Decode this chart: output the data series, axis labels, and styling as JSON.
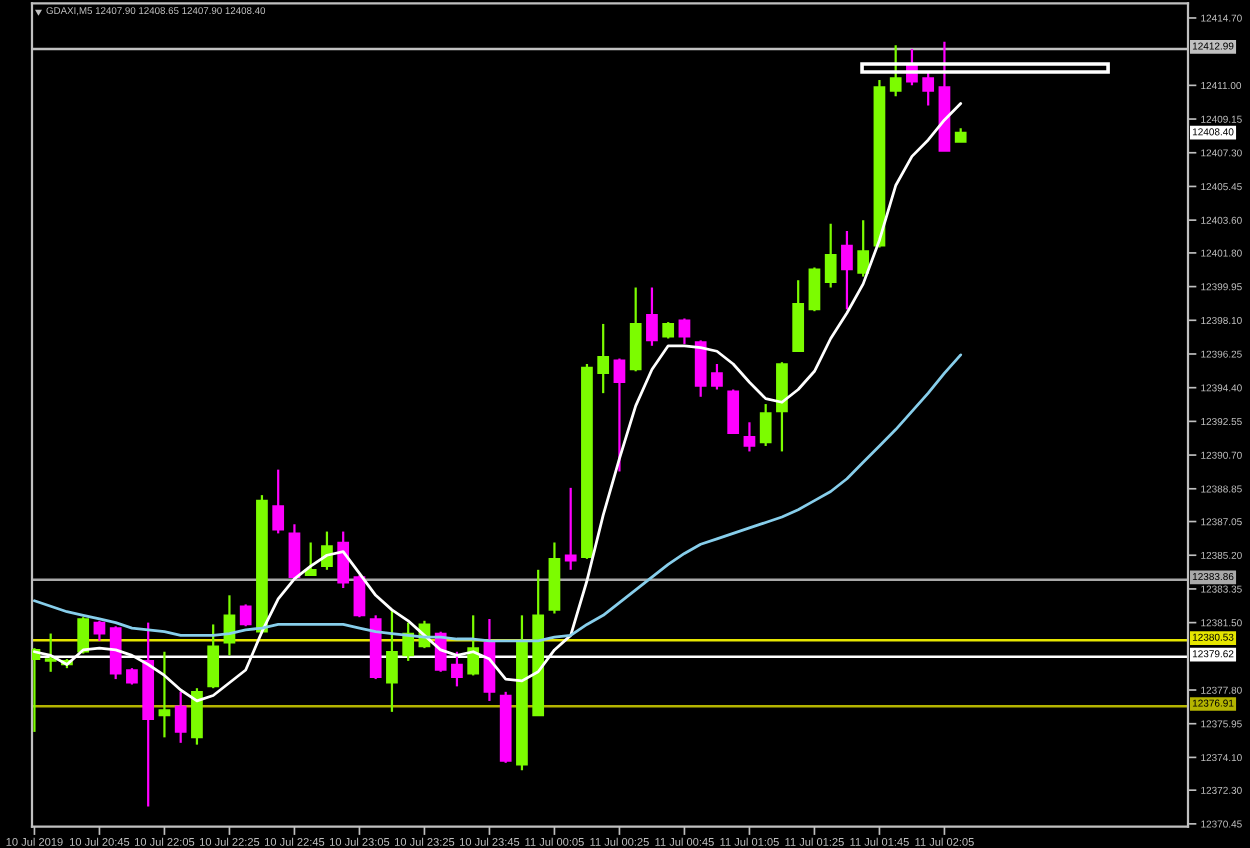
{
  "chart_data": {
    "type": "candlestick",
    "title": "GDAXI,M5 12407.90 12408.65 12407.90 12408.40",
    "categories": [
      "10 Jul 2019",
      null,
      null,
      null,
      "10 Jul 20:45",
      null,
      null,
      null,
      "10 Jul 22:05",
      null,
      null,
      null,
      "10 Jul 22:25",
      null,
      null,
      null,
      "10 Jul 22:45",
      null,
      null,
      null,
      "10 Jul 23:05",
      null,
      null,
      null,
      "10 Jul 23:25",
      null,
      null,
      null,
      "10 Jul 23:45",
      null,
      null,
      null,
      "11 Jul 00:05",
      null,
      null,
      null,
      "11 Jul 00:25",
      null,
      null,
      null,
      "11 Jul 00:45",
      null,
      null,
      null,
      "11 Jul 01:05",
      null,
      null,
      null,
      "11 Jul 01:25",
      null,
      null,
      null,
      "11 Jul 01:45",
      null,
      null,
      null,
      "11 Jul 02:05",
      null
    ],
    "ohlc": [
      [
        12379.5,
        12380.1,
        12375.5,
        12380.0
      ],
      [
        12379.4,
        12380.9,
        12378.8,
        12379.5
      ],
      [
        12379.2,
        12379.5,
        12379.0,
        12379.4
      ],
      [
        12379.9,
        12381.8,
        12379.8,
        12381.7
      ],
      [
        12381.5,
        12381.6,
        12380.5,
        12380.9
      ],
      [
        12381.2,
        12381.3,
        12378.4,
        12378.7
      ],
      [
        12378.9,
        12379.0,
        12378.1,
        12378.2
      ],
      [
        12379.4,
        12381.5,
        12371.4,
        12376.2
      ],
      [
        12376.4,
        12379.9,
        12375.2,
        12376.7
      ],
      [
        12376.9,
        12377.7,
        12374.9,
        12375.5
      ],
      [
        12375.2,
        12377.9,
        12374.8,
        12377.7
      ],
      [
        12378.0,
        12381.4,
        12377.9,
        12380.2
      ],
      [
        12380.4,
        12383.0,
        12379.7,
        12381.9
      ],
      [
        12382.4,
        12382.5,
        12381.3,
        12381.4
      ],
      [
        12381.0,
        12388.5,
        12380.9,
        12388.2
      ],
      [
        12387.9,
        12389.9,
        12386.4,
        12386.6
      ],
      [
        12386.4,
        12386.9,
        12383.9,
        12384.0
      ],
      [
        12384.1,
        12385.9,
        12384.1,
        12384.4
      ],
      [
        12384.6,
        12386.5,
        12384.4,
        12385.7
      ],
      [
        12385.9,
        12386.5,
        12383.4,
        12383.7
      ],
      [
        12384.0,
        12384.1,
        12381.8,
        12381.9
      ],
      [
        12381.7,
        12381.9,
        12378.4,
        12378.5
      ],
      [
        12378.2,
        12382.2,
        12376.6,
        12379.9
      ],
      [
        12379.7,
        12381.5,
        12379.4,
        12380.9
      ],
      [
        12380.2,
        12381.6,
        12380.1,
        12381.4
      ],
      [
        12380.9,
        12381.0,
        12378.8,
        12378.9
      ],
      [
        12379.2,
        12379.9,
        12378.0,
        12378.5
      ],
      [
        12378.7,
        12381.9,
        12378.6,
        12380.1
      ],
      [
        12380.4,
        12381.7,
        12377.2,
        12377.7
      ],
      [
        12377.5,
        12377.7,
        12373.8,
        12373.9
      ],
      [
        12373.7,
        12381.9,
        12373.4,
        12380.5
      ],
      [
        12376.4,
        12384.4,
        12376.4,
        12381.9
      ],
      [
        12382.2,
        12385.9,
        12382.0,
        12385.0
      ],
      [
        12385.2,
        12388.9,
        12384.4,
        12384.9
      ],
      [
        12385.1,
        12395.7,
        12385.0,
        12395.5
      ],
      [
        12395.2,
        12397.9,
        12394.1,
        12396.1
      ],
      [
        12395.9,
        12396.0,
        12389.8,
        12394.7
      ],
      [
        12395.4,
        12399.9,
        12395.3,
        12397.9
      ],
      [
        12398.4,
        12399.9,
        12396.7,
        12397.0
      ],
      [
        12397.2,
        12398.0,
        12397.1,
        12397.9
      ],
      [
        12398.1,
        12398.2,
        12396.8,
        12397.2
      ],
      [
        12396.9,
        12397.0,
        12393.9,
        12394.5
      ],
      [
        12395.2,
        12395.7,
        12394.3,
        12394.5
      ],
      [
        12394.2,
        12394.3,
        12391.9,
        12391.9
      ],
      [
        12391.7,
        12392.5,
        12390.9,
        12391.2
      ],
      [
        12391.4,
        12393.5,
        12391.2,
        12393.0
      ],
      [
        12393.1,
        12395.8,
        12390.9,
        12395.7
      ],
      [
        12396.4,
        12400.3,
        12396.4,
        12399.0
      ],
      [
        12398.7,
        12401.0,
        12398.6,
        12400.9
      ],
      [
        12400.2,
        12403.4,
        12399.9,
        12401.7
      ],
      [
        12402.2,
        12403.0,
        12398.7,
        12400.9
      ],
      [
        12400.7,
        12403.6,
        12400.5,
        12401.9
      ],
      [
        12402.2,
        12411.3,
        12402.1,
        12410.9
      ],
      [
        12410.7,
        12413.2,
        12410.4,
        12411.4
      ],
      [
        12412.1,
        12413.0,
        12411.0,
        12411.2
      ],
      [
        12411.4,
        12411.7,
        12409.9,
        12410.7
      ],
      [
        12410.9,
        12413.4,
        12407.4,
        12407.4
      ],
      [
        12407.9,
        12408.65,
        12407.9,
        12408.4
      ]
    ],
    "colors": [
      "#7cfc00",
      "#7cfc00",
      "#7cfc00",
      "#7cfc00",
      "#ff00ff",
      "#ff00ff",
      "#ff00ff",
      "#ff00ff",
      "#7cfc00",
      "#ff00ff",
      "#7cfc00",
      "#7cfc00",
      "#7cfc00",
      "#ff00ff",
      "#7cfc00",
      "#ff00ff",
      "#ff00ff",
      "#7cfc00",
      "#7cfc00",
      "#ff00ff",
      "#ff00ff",
      "#ff00ff",
      "#7cfc00",
      "#7cfc00",
      "#7cfc00",
      "#ff00ff",
      "#ff00ff",
      "#7cfc00",
      "#ff00ff",
      "#ff00ff",
      "#7cfc00",
      "#7cfc00",
      "#7cfc00",
      "#ff00ff",
      "#7cfc00",
      "#7cfc00",
      "#ff00ff",
      "#7cfc00",
      "#ff00ff",
      "#7cfc00",
      "#ff00ff",
      "#ff00ff",
      "#ff00ff",
      "#ff00ff",
      "#ff00ff",
      "#7cfc00",
      "#7cfc00",
      "#7cfc00",
      "#7cfc00",
      "#7cfc00",
      "#ff00ff",
      "#7cfc00",
      "#7cfc00",
      "#7cfc00",
      "#ff00ff",
      "#ff00ff",
      "#ff00ff",
      "#7cfc00"
    ],
    "series": [
      {
        "type": "line",
        "color": "#ffffff",
        "values": [
          12379.9,
          12379.7,
          12379.2,
          12380.0,
          12380.1,
          12380.0,
          12379.7,
          12379.2,
          12378.6,
          12377.8,
          12377.2,
          12377.5,
          12378.2,
          12378.9,
          12381.0,
          12382.8,
          12383.9,
          12384.6,
          12385.2,
          12385.4,
          12384.2,
          12383.0,
          12382.2,
          12381.6,
          12380.8,
          12380.0,
          12379.7,
          12379.9,
          12379.5,
          12378.4,
          12378.3,
          12378.8,
          12380.0,
          12380.8,
          12383.8,
          12387.4,
          12390.5,
          12393.4,
          12395.4,
          12396.7,
          12396.7,
          12396.6,
          12396.4,
          12395.7,
          12394.7,
          12393.8,
          12393.6,
          12394.3,
          12395.3,
          12397.1,
          12398.5,
          12400.1,
          12402.5,
          12405.5,
          12407.1,
          12408.0,
          12409.1,
          12410.0
        ]
      },
      {
        "type": "line",
        "color": "#87ceeb",
        "values": [
          12382.7,
          12382.4,
          12382.1,
          12381.9,
          12381.7,
          12381.5,
          12381.2,
          12381.1,
          12381.0,
          12380.8,
          12380.8,
          12380.8,
          12380.9,
          12381.1,
          12381.2,
          12381.4,
          12381.4,
          12381.4,
          12381.4,
          12381.4,
          12381.2,
          12381.0,
          12380.9,
          12380.8,
          12380.7,
          12380.7,
          12380.6,
          12380.6,
          12380.5,
          12380.5,
          12380.5,
          12380.5,
          12380.7,
          12380.8,
          12381.4,
          12381.9,
          12382.6,
          12383.3,
          12384.0,
          12384.7,
          12385.3,
          12385.8,
          12386.1,
          12386.4,
          12386.7,
          12387.0,
          12387.3,
          12387.7,
          12388.2,
          12388.7,
          12389.4,
          12390.3,
          12391.2,
          12392.1,
          12393.1,
          12394.1,
          12395.2,
          12396.2
        ]
      }
    ],
    "ylim": [
      12370.3,
      12415.5
    ],
    "yticks": [
      12370.45,
      {
        "value": 12372.3,
        "label": "12372.30"
      },
      {
        "value": 12374.1,
        "label": "12374.10"
      },
      12375.95,
      {
        "value": 12377.8,
        "label": "12377.80"
      },
      {
        "value": 12381.5,
        "label": "12381.50"
      },
      12383.35,
      {
        "value": 12385.2,
        "label": "12385.20"
      },
      12387.05,
      12388.85,
      {
        "value": 12390.7,
        "label": "12390.70"
      },
      12392.55,
      {
        "value": 12394.4,
        "label": "12394.40"
      },
      12396.25,
      {
        "value": 12398.1,
        "label": "12398.10"
      },
      12399.95,
      {
        "value": 12401.8,
        "label": "12401.80"
      },
      {
        "value": 12403.6,
        "label": "12403.60"
      },
      12405.45,
      {
        "value": 12407.3,
        "label": "12407.30"
      },
      12409.15,
      {
        "value": 12411.0,
        "label": "12411.00"
      },
      {
        "value": 12414.7,
        "label": "12414.70"
      }
    ],
    "ref_lines": [
      {
        "axis": "y",
        "value": 12412.99,
        "label": "12412.99",
        "color": "#c0c0c0"
      },
      {
        "axis": "y",
        "value": 12383.86,
        "label": "12383.86",
        "color": "#a9a9a9"
      },
      {
        "axis": "y",
        "value": 12380.53,
        "label": "12380.53",
        "color": "#e6e600"
      },
      {
        "axis": "y",
        "value": 12379.62,
        "label": "12379.62",
        "color": "#ffffff"
      },
      {
        "axis": "y",
        "value": 12376.91,
        "label": "12376.91",
        "color": "#b4b400"
      }
    ],
    "annotations": [
      "12408.40"
    ]
  }
}
